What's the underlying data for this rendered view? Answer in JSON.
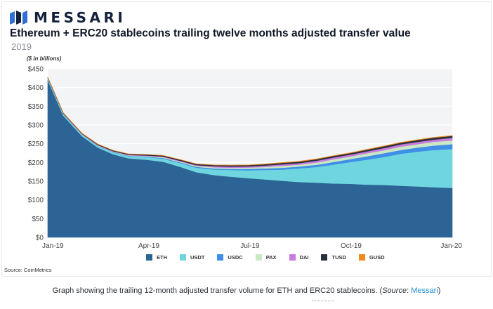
{
  "brand": {
    "name": "MESSARI"
  },
  "header": {
    "title": "Ethereum + ERC20 stablecoins trailing twelve months adjusted transfer value",
    "subtitle": "2019",
    "unit_label": "($ in billions)"
  },
  "source": "Source: CoinMetrics",
  "caption": {
    "text": "Graph showing the trailing 12-month adjusted transfer volume for ETH and ERC20 stablecoins. (",
    "source_word": "Source",
    "sep": ": ",
    "link": "Messari",
    "end": ")"
  },
  "colors": {
    "ETH": "#2d6496",
    "USDT": "#6fd6e0",
    "USDC": "#3f8fe8",
    "PAX": "#c9e8c3",
    "DAI": "#c77bdc",
    "TUSD": "#28303d",
    "GUSD": "#f08a1c",
    "plot_bg": "#f3f4f6",
    "grid": "#ffffff",
    "brand": "#14213d"
  },
  "chart_data": {
    "type": "area",
    "stacked": true,
    "x_tick_labels": [
      "Jan-19",
      "Apr-19",
      "Jul-19",
      "Oct-19",
      "Jan-20"
    ],
    "y_tick_labels": [
      "$0",
      "$50",
      "$100",
      "$150",
      "$200",
      "$250",
      "$300",
      "$350",
      "$400",
      "$450"
    ],
    "ylim": [
      0,
      450
    ],
    "grid": true,
    "legend_position": "bottom",
    "x": [
      "2019-01-01",
      "2019-01-15",
      "2019-02-01",
      "2019-02-15",
      "2019-03-01",
      "2019-03-15",
      "2019-04-01",
      "2019-04-15",
      "2019-05-01",
      "2019-05-15",
      "2019-06-01",
      "2019-06-15",
      "2019-07-01",
      "2019-07-15",
      "2019-08-01",
      "2019-08-15",
      "2019-09-01",
      "2019-09-15",
      "2019-10-01",
      "2019-10-15",
      "2019-11-01",
      "2019-11-15",
      "2019-12-01",
      "2019-12-15",
      "2020-01-01"
    ],
    "series": [
      {
        "name": "ETH",
        "values": [
          420,
          325,
          270,
          240,
          222,
          211,
          207,
          202,
          188,
          174,
          166,
          162,
          158,
          155,
          151,
          148,
          146,
          144,
          143,
          141,
          140,
          138,
          136,
          134,
          132
        ]
      },
      {
        "name": "USDT",
        "values": [
          4,
          4,
          4,
          4,
          5,
          6,
          7,
          8,
          10,
          12,
          15,
          18,
          21,
          25,
          30,
          36,
          42,
          50,
          58,
          66,
          75,
          85,
          93,
          99,
          104
        ]
      },
      {
        "name": "USDC",
        "values": [
          0.5,
          0.5,
          0.5,
          1,
          1,
          1,
          1.5,
          2,
          2,
          2.5,
          3,
          3,
          4,
          4,
          5,
          5,
          6,
          7,
          8,
          9,
          10,
          10,
          11,
          12,
          13
        ]
      },
      {
        "name": "PAX",
        "values": [
          0.5,
          0.5,
          0.5,
          1,
          1,
          1,
          1.5,
          2,
          2,
          2.5,
          3,
          3,
          3.5,
          4,
          5,
          5,
          6,
          7,
          7,
          8,
          8,
          9,
          9,
          10,
          10
        ]
      },
      {
        "name": "DAI",
        "values": [
          1,
          1,
          1,
          1,
          1,
          1.5,
          1.5,
          2,
          2,
          2,
          3,
          3,
          3,
          3.5,
          4,
          4,
          5,
          5,
          5,
          5,
          6,
          6,
          6,
          6,
          7
        ]
      },
      {
        "name": "TUSD",
        "values": [
          1.5,
          1.5,
          1.5,
          2,
          2,
          2,
          2.5,
          2.5,
          3,
          3,
          3,
          3.5,
          3.5,
          3.5,
          4,
          4,
          4,
          4,
          4,
          4.5,
          4.5,
          4.5,
          5,
          5,
          5
        ]
      },
      {
        "name": "GUSD",
        "values": [
          0.5,
          0.5,
          0.5,
          0.5,
          0.5,
          0.5,
          0.5,
          0.5,
          0.5,
          0.5,
          0.5,
          0.5,
          0.5,
          1,
          1,
          1,
          1,
          1,
          1,
          1,
          1,
          1,
          1,
          1,
          1
        ]
      }
    ]
  }
}
